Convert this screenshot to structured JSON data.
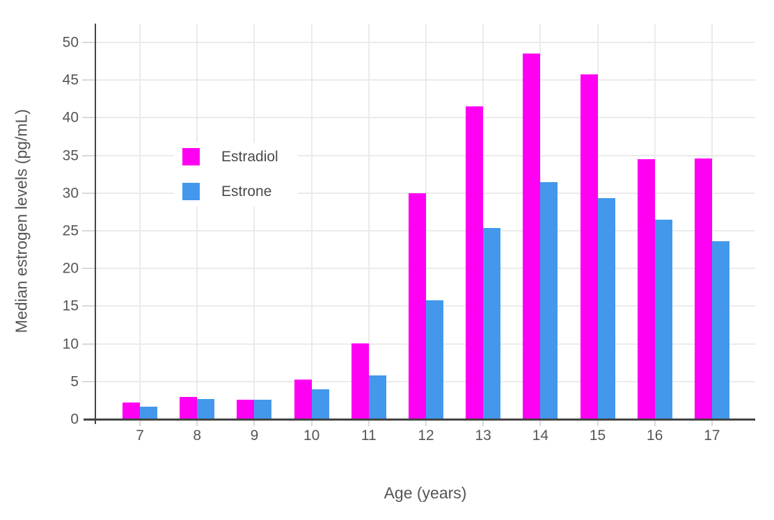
{
  "chart_data": {
    "type": "bar",
    "title": "",
    "xlabel": "Age (years)",
    "ylabel": "Median estrogen levels (pg/mL)",
    "categories": [
      "7",
      "8",
      "9",
      "10",
      "11",
      "12",
      "13",
      "14",
      "15",
      "16",
      "17"
    ],
    "series": [
      {
        "name": "Estradiol",
        "color": "#ff00f2",
        "values": [
          2.2,
          3.0,
          2.6,
          5.3,
          10.1,
          30.0,
          41.5,
          48.5,
          45.8,
          34.5,
          34.6
        ]
      },
      {
        "name": "Estrone",
        "color": "#4398ec",
        "values": [
          1.7,
          2.7,
          2.6,
          4.0,
          5.8,
          15.8,
          25.4,
          31.5,
          29.3,
          26.5,
          23.6
        ]
      }
    ],
    "ylim": [
      0,
      52.5
    ],
    "yticks": [
      0,
      5,
      10,
      15,
      20,
      25,
      30,
      35,
      40,
      45,
      50
    ],
    "grid": true,
    "legend_position": "inside-top-left",
    "colors": {
      "axis_line": "#444444",
      "gridline": "#ebebeb",
      "tick": "#d9d9d9",
      "text": "#555555",
      "background": "#ffffff"
    }
  }
}
